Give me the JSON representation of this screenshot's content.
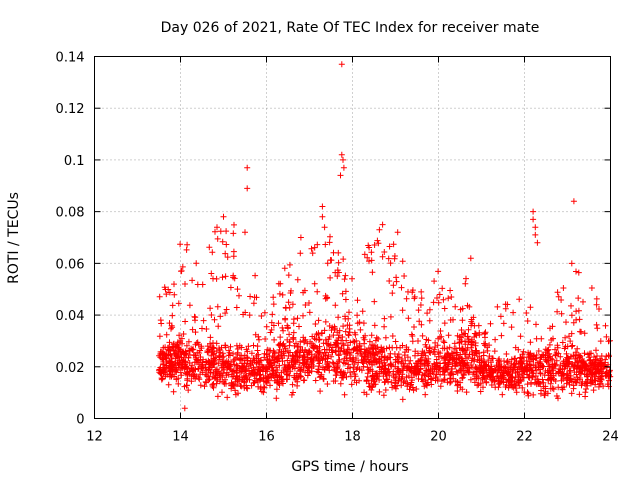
{
  "chart_data": {
    "type": "scatter",
    "title": "Day 026 of 2021, Rate Of TEC Index for receiver mate",
    "xlabel": "GPS time / hours",
    "ylabel": "ROTI / TECUs",
    "xlim": [
      12,
      24
    ],
    "ylim": [
      0,
      0.14
    ],
    "xticks": [
      12,
      14,
      16,
      18,
      20,
      22,
      24
    ],
    "yticks": [
      0,
      0.02,
      0.04,
      0.06,
      0.08,
      0.1,
      0.12,
      0.14
    ],
    "grid": true,
    "marker": "plus",
    "color": "#ff0000",
    "series": [
      {
        "name": "ROTI",
        "envelope": [
          {
            "x": 13.5,
            "base": 0.022,
            "spread": 0.014,
            "peak": 0.052
          },
          {
            "x": 13.8,
            "base": 0.02,
            "spread": 0.016,
            "peak": 0.05
          },
          {
            "x": 14.0,
            "base": 0.024,
            "spread": 0.025,
            "peak": 0.069
          },
          {
            "x": 14.2,
            "base": 0.021,
            "spread": 0.02,
            "peak": 0.068
          },
          {
            "x": 14.5,
            "base": 0.022,
            "spread": 0.02,
            "peak": 0.058
          },
          {
            "x": 14.8,
            "base": 0.02,
            "spread": 0.022,
            "peak": 0.074
          },
          {
            "x": 15.0,
            "base": 0.02,
            "spread": 0.022,
            "peak": 0.078
          },
          {
            "x": 15.5,
            "base": 0.018,
            "spread": 0.016,
            "peak": 0.072
          },
          {
            "x": 16.0,
            "base": 0.018,
            "spread": 0.015,
            "peak": 0.04
          },
          {
            "x": 16.5,
            "base": 0.022,
            "spread": 0.025,
            "peak": 0.063
          },
          {
            "x": 17.0,
            "base": 0.022,
            "spread": 0.02,
            "peak": 0.07
          },
          {
            "x": 17.5,
            "base": 0.025,
            "spread": 0.025,
            "peak": 0.075
          },
          {
            "x": 18.0,
            "base": 0.025,
            "spread": 0.025,
            "peak": 0.062
          },
          {
            "x": 18.5,
            "base": 0.02,
            "spread": 0.022,
            "peak": 0.075
          },
          {
            "x": 19.0,
            "base": 0.019,
            "spread": 0.02,
            "peak": 0.072
          },
          {
            "x": 19.5,
            "base": 0.018,
            "spread": 0.016,
            "peak": 0.048
          },
          {
            "x": 20.0,
            "base": 0.02,
            "spread": 0.02,
            "peak": 0.058
          },
          {
            "x": 20.5,
            "base": 0.022,
            "spread": 0.02,
            "peak": 0.05
          },
          {
            "x": 20.8,
            "base": 0.026,
            "spread": 0.03,
            "peak": 0.062
          },
          {
            "x": 21.0,
            "base": 0.018,
            "spread": 0.012,
            "peak": 0.03
          },
          {
            "x": 21.5,
            "base": 0.017,
            "spread": 0.014,
            "peak": 0.05
          },
          {
            "x": 22.0,
            "base": 0.018,
            "spread": 0.018,
            "peak": 0.046
          },
          {
            "x": 22.5,
            "base": 0.018,
            "spread": 0.018,
            "peak": 0.04
          },
          {
            "x": 23.0,
            "base": 0.02,
            "spread": 0.02,
            "peak": 0.06
          },
          {
            "x": 23.5,
            "base": 0.019,
            "spread": 0.018,
            "peak": 0.055
          },
          {
            "x": 24.0,
            "base": 0.018,
            "spread": 0.012,
            "peak": 0.032
          }
        ],
        "notable_points": [
          {
            "x": 15.55,
            "y": 0.097
          },
          {
            "x": 15.55,
            "y": 0.089
          },
          {
            "x": 15.5,
            "y": 0.072
          },
          {
            "x": 17.75,
            "y": 0.137
          },
          {
            "x": 17.75,
            "y": 0.102
          },
          {
            "x": 17.78,
            "y": 0.1
          },
          {
            "x": 17.8,
            "y": 0.097
          },
          {
            "x": 17.72,
            "y": 0.094
          },
          {
            "x": 17.3,
            "y": 0.082
          },
          {
            "x": 17.3,
            "y": 0.078
          },
          {
            "x": 17.35,
            "y": 0.074
          },
          {
            "x": 22.2,
            "y": 0.08
          },
          {
            "x": 22.2,
            "y": 0.077
          },
          {
            "x": 22.25,
            "y": 0.074
          },
          {
            "x": 22.25,
            "y": 0.071
          },
          {
            "x": 22.3,
            "y": 0.068
          },
          {
            "x": 23.15,
            "y": 0.084
          },
          {
            "x": 16.8,
            "y": 0.07
          },
          {
            "x": 18.7,
            "y": 0.075
          },
          {
            "x": 19.05,
            "y": 0.072
          },
          {
            "x": 15.0,
            "y": 0.078
          },
          {
            "x": 14.85,
            "y": 0.074
          },
          {
            "x": 20.75,
            "y": 0.062
          },
          {
            "x": 23.1,
            "y": 0.06
          },
          {
            "x": 14.1,
            "y": 0.004
          }
        ]
      }
    ]
  }
}
